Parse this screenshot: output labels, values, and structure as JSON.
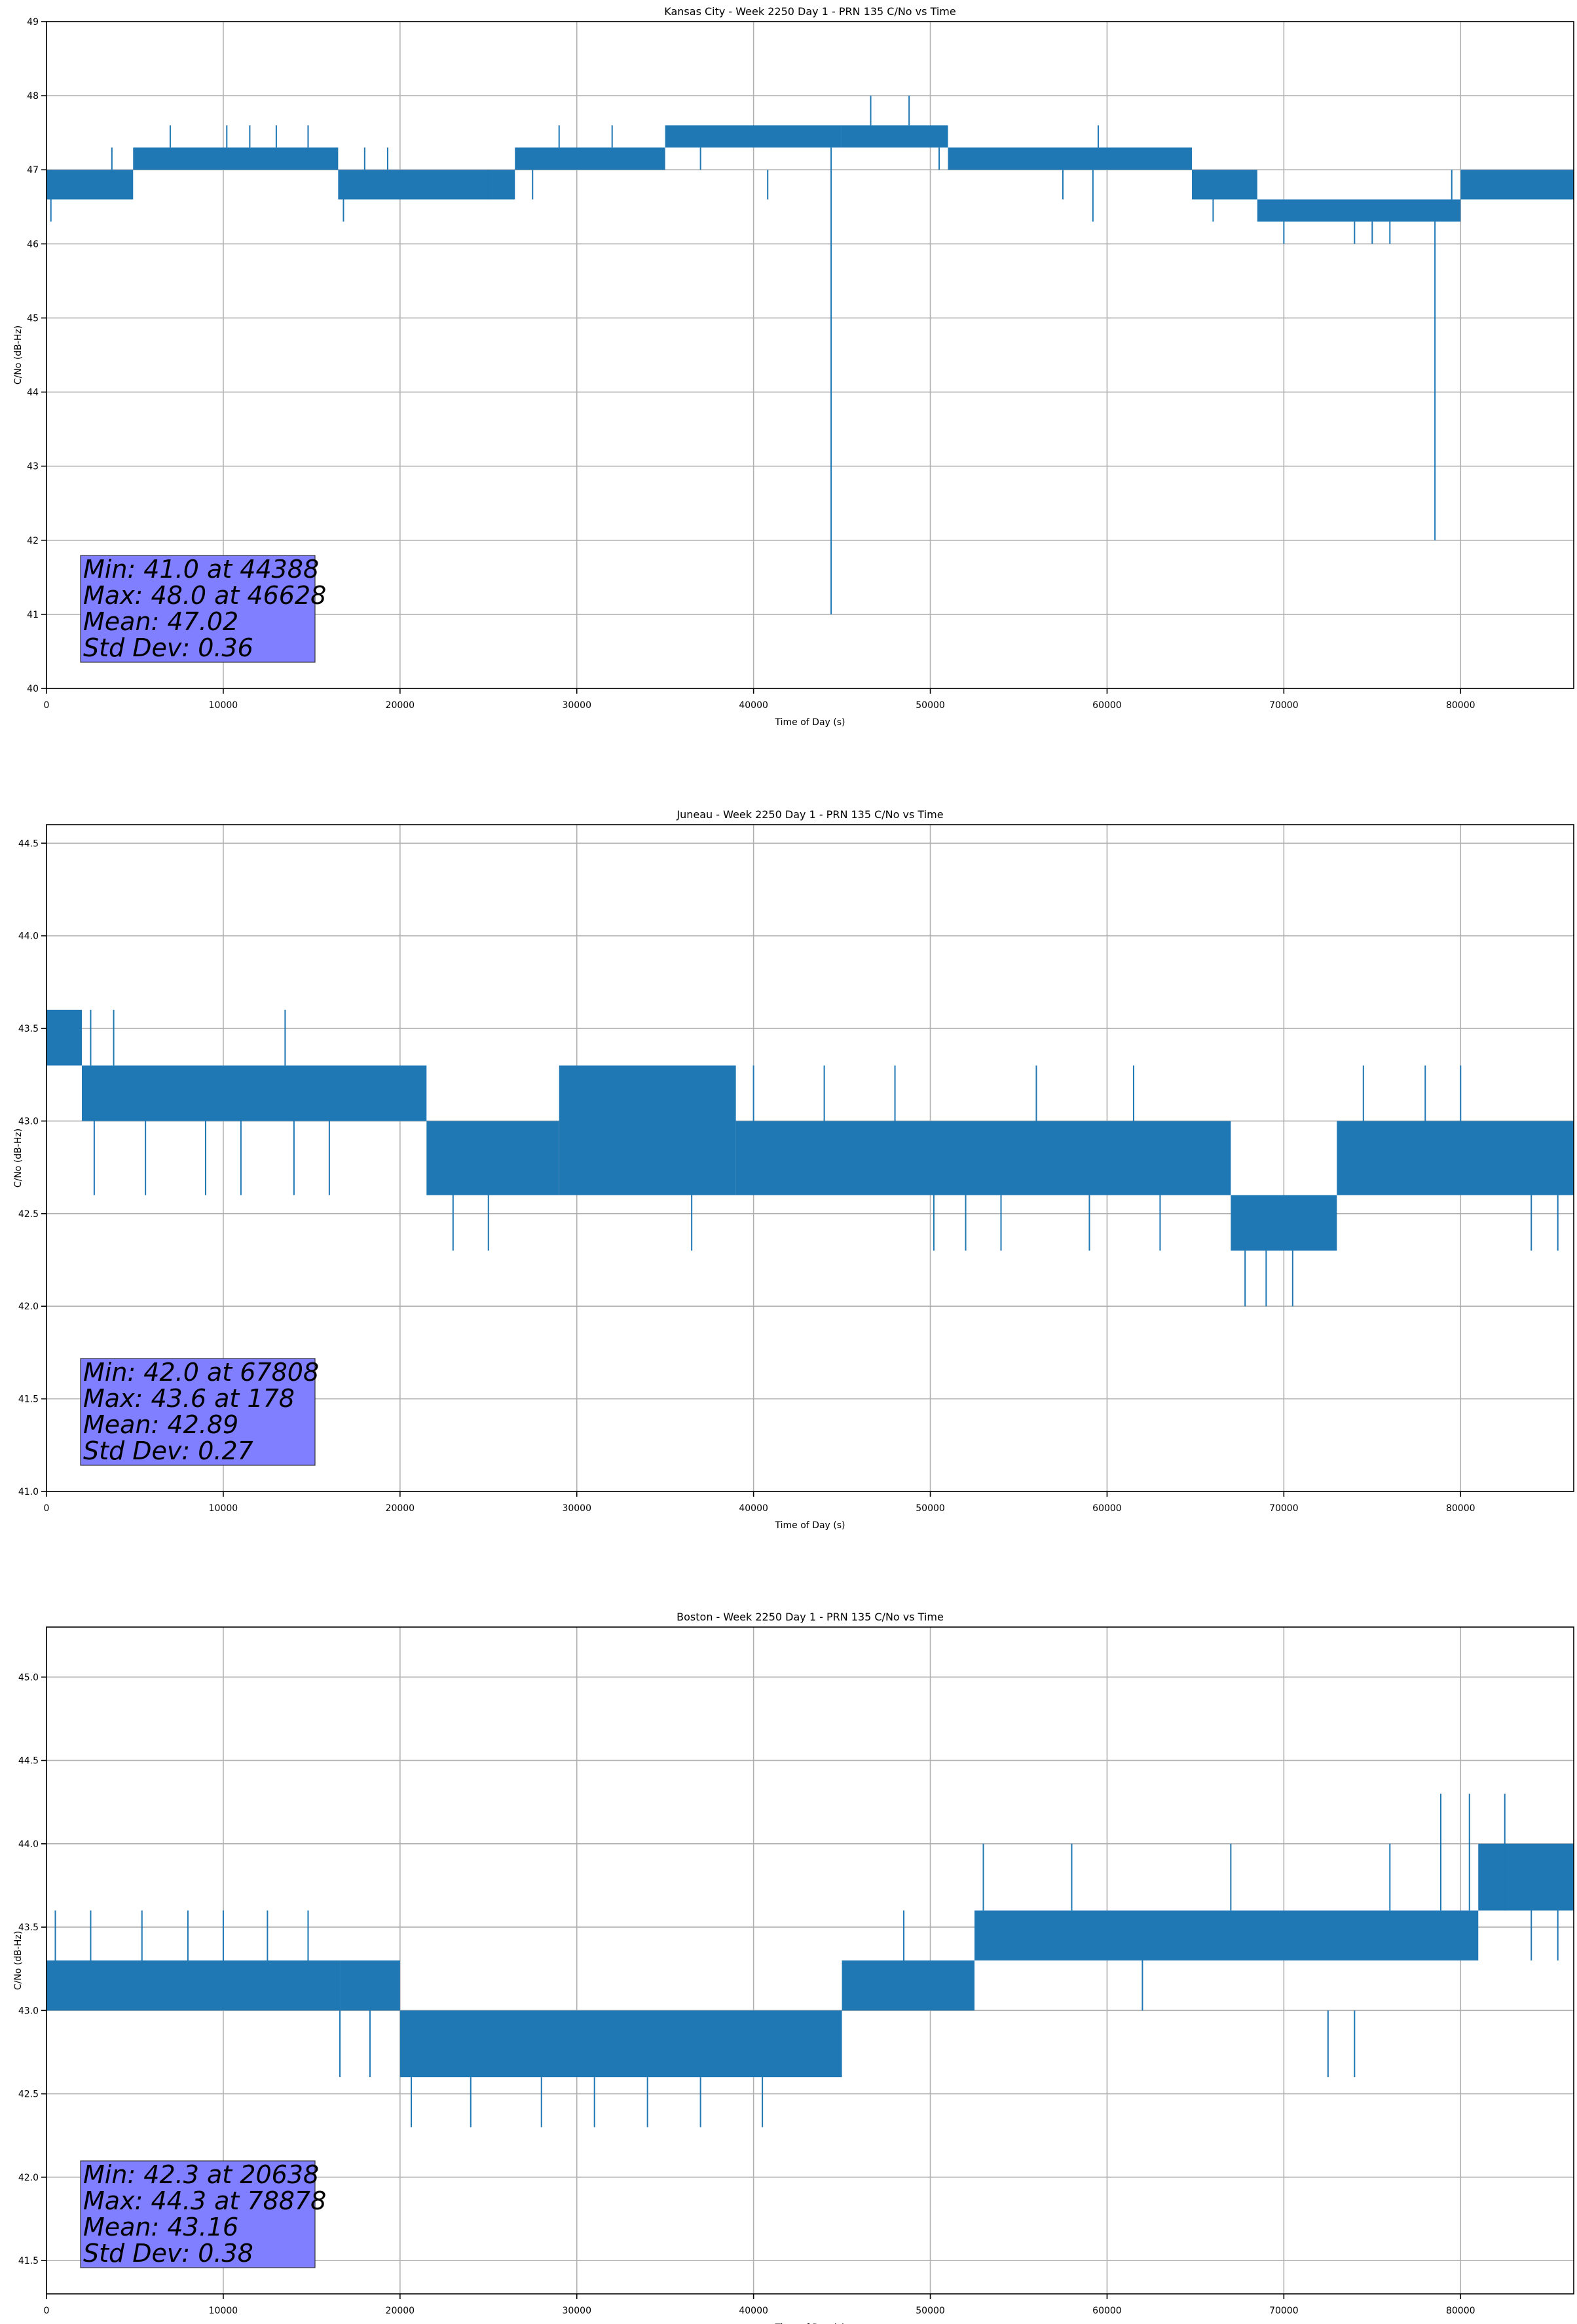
{
  "figure": {
    "line_color": "#1f77b4",
    "stats_box_color": "#7f7fff",
    "grid": true
  },
  "chart_data": [
    {
      "type": "line",
      "title": "Kansas City - Week 2250 Day 1 - PRN 135 C/No vs Time",
      "xlabel": "Time of Day (s)",
      "ylabel": "C/No (dB-Hz)",
      "xlim": [
        0,
        86400
      ],
      "ylim": [
        40,
        49
      ],
      "x_ticks": [
        0,
        10000,
        20000,
        30000,
        40000,
        50000,
        60000,
        70000,
        80000
      ],
      "x_tick_labels": [
        "0",
        "10000",
        "20000",
        "30000",
        "40000",
        "50000",
        "60000",
        "70000",
        "80000"
      ],
      "y_ticks": [
        40,
        41,
        42,
        43,
        44,
        45,
        46,
        47,
        48,
        49
      ],
      "y_tick_labels": [
        "40",
        "41",
        "42",
        "43",
        "44",
        "45",
        "46",
        "47",
        "48",
        "49"
      ],
      "segments": [
        {
          "x": [
            0,
            4900
          ],
          "low": 46.6,
          "high": 47.0
        },
        {
          "x": [
            4900,
            16500
          ],
          "low": 47.0,
          "high": 47.3
        },
        {
          "x": [
            16500,
            26500
          ],
          "low": 46.6,
          "high": 47.0
        },
        {
          "x": [
            26500,
            35000
          ],
          "low": 47.0,
          "high": 47.3
        },
        {
          "x": [
            35000,
            45000
          ],
          "low": 47.3,
          "high": 47.6
        },
        {
          "x": [
            45000,
            51000
          ],
          "low": 47.3,
          "high": 47.6
        },
        {
          "x": [
            51000,
            64800
          ],
          "low": 47.0,
          "high": 47.3
        },
        {
          "x": [
            64800,
            68500
          ],
          "low": 46.6,
          "high": 47.0
        },
        {
          "x": [
            68500,
            80000
          ],
          "low": 46.3,
          "high": 46.6
        },
        {
          "x": [
            80000,
            86400
          ],
          "low": 46.6,
          "high": 47.0
        }
      ],
      "spikes": [
        {
          "x": 250,
          "low": 46.3,
          "high": 47.0
        },
        {
          "x": 3700,
          "low": 47.0,
          "high": 47.3
        },
        {
          "x": 7000,
          "low": 47.3,
          "high": 47.6
        },
        {
          "x": 10200,
          "low": 47.3,
          "high": 47.6
        },
        {
          "x": 11500,
          "low": 47.3,
          "high": 47.6
        },
        {
          "x": 13000,
          "low": 47.3,
          "high": 47.6
        },
        {
          "x": 14800,
          "low": 47.3,
          "high": 47.6
        },
        {
          "x": 16800,
          "low": 46.3,
          "high": 46.6
        },
        {
          "x": 18000,
          "low": 47.0,
          "high": 47.3
        },
        {
          "x": 19300,
          "low": 47.0,
          "high": 47.3
        },
        {
          "x": 25000,
          "low": 46.6,
          "high": 47.0
        },
        {
          "x": 27500,
          "low": 46.6,
          "high": 47.0
        },
        {
          "x": 29000,
          "low": 47.3,
          "high": 47.6
        },
        {
          "x": 32000,
          "low": 47.3,
          "high": 47.6
        },
        {
          "x": 37000,
          "low": 47.0,
          "high": 47.3
        },
        {
          "x": 40800,
          "low": 46.6,
          "high": 47.0
        },
        {
          "x": 44388,
          "low": 41.0,
          "high": 47.3
        },
        {
          "x": 46628,
          "low": 47.6,
          "high": 48.0
        },
        {
          "x": 48800,
          "low": 47.6,
          "high": 48.0
        },
        {
          "x": 50500,
          "low": 47.0,
          "high": 47.3
        },
        {
          "x": 57500,
          "low": 46.6,
          "high": 47.0
        },
        {
          "x": 59500,
          "low": 47.3,
          "high": 47.6
        },
        {
          "x": 59200,
          "low": 46.3,
          "high": 47.0
        },
        {
          "x": 66000,
          "low": 46.3,
          "high": 46.6
        },
        {
          "x": 70000,
          "low": 46.0,
          "high": 46.3
        },
        {
          "x": 74000,
          "low": 46.0,
          "high": 46.3
        },
        {
          "x": 75000,
          "low": 46.0,
          "high": 46.3
        },
        {
          "x": 76000,
          "low": 46.0,
          "high": 46.3
        },
        {
          "x": 78550,
          "low": 42.0,
          "high": 46.3
        },
        {
          "x": 79500,
          "low": 46.6,
          "high": 47.0
        }
      ],
      "stats": [
        "Min: 41.0 at 44388",
        "Max: 48.0 at 46628",
        "Mean: 47.02",
        "Std Dev: 0.36"
      ]
    },
    {
      "type": "line",
      "title": "Juneau - Week 2250 Day 1 - PRN 135 C/No vs Time",
      "xlabel": "Time of Day (s)",
      "ylabel": "C/No (dB-Hz)",
      "xlim": [
        0,
        86400
      ],
      "ylim": [
        41.0,
        44.6
      ],
      "x_ticks": [
        0,
        10000,
        20000,
        30000,
        40000,
        50000,
        60000,
        70000,
        80000
      ],
      "x_tick_labels": [
        "0",
        "10000",
        "20000",
        "30000",
        "40000",
        "50000",
        "60000",
        "70000",
        "80000"
      ],
      "y_ticks": [
        41.0,
        41.5,
        42.0,
        42.5,
        43.0,
        43.5,
        44.0,
        44.5
      ],
      "y_tick_labels": [
        "41.0",
        "41.5",
        "42.0",
        "42.5",
        "43.0",
        "43.5",
        "44.0",
        "44.5"
      ],
      "segments": [
        {
          "x": [
            0,
            2000
          ],
          "low": 43.3,
          "high": 43.6
        },
        {
          "x": [
            2000,
            21500
          ],
          "low": 43.0,
          "high": 43.3
        },
        {
          "x": [
            21500,
            29000
          ],
          "low": 42.6,
          "high": 43.0
        },
        {
          "x": [
            29000,
            39000
          ],
          "low": 42.6,
          "high": 43.3
        },
        {
          "x": [
            39000,
            67000
          ],
          "low": 42.6,
          "high": 43.0
        },
        {
          "x": [
            67000,
            73000
          ],
          "low": 42.3,
          "high": 42.6
        },
        {
          "x": [
            73000,
            86400
          ],
          "low": 42.6,
          "high": 43.0
        }
      ],
      "spikes": [
        {
          "x": 2500,
          "low": 43.3,
          "high": 43.6
        },
        {
          "x": 2700,
          "low": 42.6,
          "high": 43.0
        },
        {
          "x": 3800,
          "low": 43.3,
          "high": 43.6
        },
        {
          "x": 5600,
          "low": 42.6,
          "high": 43.0
        },
        {
          "x": 9000,
          "low": 42.6,
          "high": 43.0
        },
        {
          "x": 11000,
          "low": 42.6,
          "high": 43.0
        },
        {
          "x": 13500,
          "low": 43.3,
          "high": 43.6
        },
        {
          "x": 14000,
          "low": 42.6,
          "high": 43.0
        },
        {
          "x": 16000,
          "low": 42.6,
          "high": 43.0
        },
        {
          "x": 23000,
          "low": 42.3,
          "high": 42.6
        },
        {
          "x": 25000,
          "low": 42.3,
          "high": 42.6
        },
        {
          "x": 36500,
          "low": 42.3,
          "high": 42.6
        },
        {
          "x": 40000,
          "low": 43.0,
          "high": 43.3
        },
        {
          "x": 44000,
          "low": 43.0,
          "high": 43.3
        },
        {
          "x": 48000,
          "low": 43.0,
          "high": 43.3
        },
        {
          "x": 50200,
          "low": 42.3,
          "high": 42.6
        },
        {
          "x": 52000,
          "low": 42.3,
          "high": 42.6
        },
        {
          "x": 54000,
          "low": 42.3,
          "high": 42.6
        },
        {
          "x": 56000,
          "low": 43.0,
          "high": 43.3
        },
        {
          "x": 59000,
          "low": 42.3,
          "high": 42.6
        },
        {
          "x": 61500,
          "low": 43.0,
          "high": 43.3
        },
        {
          "x": 63000,
          "low": 42.3,
          "high": 42.6
        },
        {
          "x": 67808,
          "low": 42.0,
          "high": 42.3
        },
        {
          "x": 69000,
          "low": 42.0,
          "high": 42.3
        },
        {
          "x": 70500,
          "low": 42.0,
          "high": 42.3
        },
        {
          "x": 74500,
          "low": 43.0,
          "high": 43.3
        },
        {
          "x": 78000,
          "low": 43.0,
          "high": 43.3
        },
        {
          "x": 80000,
          "low": 43.0,
          "high": 43.3
        },
        {
          "x": 84000,
          "low": 42.3,
          "high": 42.6
        },
        {
          "x": 85500,
          "low": 42.3,
          "high": 42.6
        }
      ],
      "stats": [
        "Min: 42.0 at 67808",
        "Max: 43.6 at 178",
        "Mean: 42.89",
        "Std Dev: 0.27"
      ]
    },
    {
      "type": "line",
      "title": "Boston - Week 2250 Day 1 - PRN 135 C/No vs Time",
      "xlabel": "Time of Day (s)",
      "ylabel": "C/No (dB-Hz)",
      "xlim": [
        0,
        86400
      ],
      "ylim": [
        41.3,
        45.3
      ],
      "x_ticks": [
        0,
        10000,
        20000,
        30000,
        40000,
        50000,
        60000,
        70000,
        80000
      ],
      "x_tick_labels": [
        "0",
        "10000",
        "20000",
        "30000",
        "40000",
        "50000",
        "60000",
        "70000",
        "80000"
      ],
      "y_ticks": [
        41.5,
        42.0,
        42.5,
        43.0,
        43.5,
        44.0,
        44.5,
        45.0
      ],
      "y_tick_labels": [
        "41.5",
        "42.0",
        "42.5",
        "43.0",
        "43.5",
        "44.0",
        "44.5",
        "45.0"
      ],
      "segments": [
        {
          "x": [
            0,
            16600
          ],
          "low": 43.0,
          "high": 43.3
        },
        {
          "x": [
            16600,
            20000
          ],
          "low": 43.0,
          "high": 43.3
        },
        {
          "x": [
            20000,
            45000
          ],
          "low": 42.6,
          "high": 43.0
        },
        {
          "x": [
            45000,
            52500
          ],
          "low": 43.0,
          "high": 43.3
        },
        {
          "x": [
            52500,
            81000
          ],
          "low": 43.3,
          "high": 43.6
        },
        {
          "x": [
            81000,
            86400
          ],
          "low": 43.6,
          "high": 44.0
        }
      ],
      "spikes": [
        {
          "x": 500,
          "low": 43.3,
          "high": 43.6
        },
        {
          "x": 2500,
          "low": 43.3,
          "high": 43.6
        },
        {
          "x": 5400,
          "low": 43.3,
          "high": 43.6
        },
        {
          "x": 8000,
          "low": 43.3,
          "high": 43.6
        },
        {
          "x": 10000,
          "low": 43.3,
          "high": 43.6
        },
        {
          "x": 12500,
          "low": 43.3,
          "high": 43.6
        },
        {
          "x": 14800,
          "low": 43.3,
          "high": 43.6
        },
        {
          "x": 16600,
          "low": 42.6,
          "high": 43.0
        },
        {
          "x": 18300,
          "low": 42.6,
          "high": 43.0
        },
        {
          "x": 20638,
          "low": 42.3,
          "high": 42.6
        },
        {
          "x": 24000,
          "low": 42.3,
          "high": 42.6
        },
        {
          "x": 28000,
          "low": 42.3,
          "high": 42.6
        },
        {
          "x": 31000,
          "low": 42.3,
          "high": 42.6
        },
        {
          "x": 34000,
          "low": 42.3,
          "high": 42.6
        },
        {
          "x": 37000,
          "low": 42.3,
          "high": 42.6
        },
        {
          "x": 40500,
          "low": 42.3,
          "high": 42.6
        },
        {
          "x": 48500,
          "low": 43.3,
          "high": 43.6
        },
        {
          "x": 53000,
          "low": 43.6,
          "high": 44.0
        },
        {
          "x": 58000,
          "low": 43.6,
          "high": 44.0
        },
        {
          "x": 62000,
          "low": 43.0,
          "high": 43.3
        },
        {
          "x": 67000,
          "low": 43.6,
          "high": 44.0
        },
        {
          "x": 72500,
          "low": 42.6,
          "high": 43.0
        },
        {
          "x": 74000,
          "low": 42.6,
          "high": 43.0
        },
        {
          "x": 76000,
          "low": 43.6,
          "high": 44.0
        },
        {
          "x": 78878,
          "low": 43.6,
          "high": 44.3
        },
        {
          "x": 80500,
          "low": 43.6,
          "high": 44.3
        },
        {
          "x": 82500,
          "low": 43.6,
          "high": 44.3
        },
        {
          "x": 84000,
          "low": 43.3,
          "high": 43.6
        },
        {
          "x": 85500,
          "low": 43.3,
          "high": 43.6
        }
      ],
      "stats": [
        "Min: 42.3 at 20638",
        "Max: 44.3 at 78878",
        "Mean: 43.16",
        "Std Dev: 0.38"
      ]
    }
  ]
}
